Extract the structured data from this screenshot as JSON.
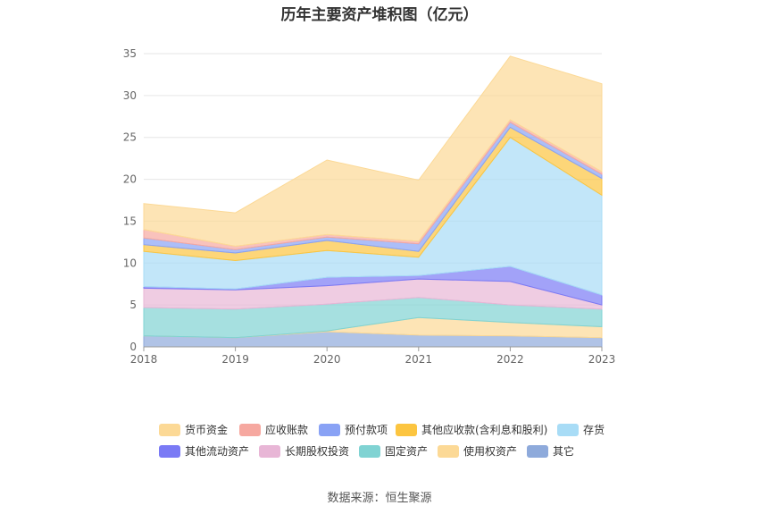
{
  "title": "历年主要资产堆积图（亿元）",
  "source": "数据来源：恒生聚源",
  "chart_data": {
    "type": "area",
    "stacked": true,
    "title": "历年主要资产堆积图（亿元）",
    "x": [
      "2018",
      "2019",
      "2020",
      "2021",
      "2022",
      "2023"
    ],
    "ylim": [
      0,
      35
    ],
    "yticks": [
      0,
      5,
      10,
      15,
      20,
      25,
      30,
      35
    ],
    "grid": true,
    "legend_position": "bottom",
    "series": [
      {
        "name": "其它",
        "color": "#8eaadb",
        "values": [
          1.3,
          1.1,
          1.8,
          1.4,
          1.3,
          1.1
        ]
      },
      {
        "name": "使用权资产",
        "color": "#fcd996",
        "values": [
          0,
          0,
          0.1,
          2.1,
          1.6,
          1.3
        ]
      },
      {
        "name": "固定资产",
        "color": "#80d3d3",
        "values": [
          3.4,
          3.4,
          3.2,
          2.4,
          2.1,
          2.1
        ]
      },
      {
        "name": "长期股权投资",
        "color": "#e8b6d6",
        "values": [
          2.3,
          2.3,
          2.2,
          2.2,
          2.8,
          0.5
        ]
      },
      {
        "name": "其他流动资产",
        "color": "#7a7af5",
        "values": [
          0.2,
          0.1,
          1.0,
          0.4,
          1.8,
          1.2
        ]
      },
      {
        "name": "存货",
        "color": "#a8dcf6",
        "values": [
          4.2,
          3.4,
          3.2,
          2.2,
          15.4,
          11.9
        ]
      },
      {
        "name": "其他应收款(含利息和股利)",
        "color": "#fcc540",
        "values": [
          0.8,
          0.9,
          1.2,
          0.7,
          1.2,
          2.0
        ]
      },
      {
        "name": "预付款项",
        "color": "#89a2f5",
        "values": [
          0.8,
          0.4,
          0.4,
          0.9,
          0.6,
          0.5
        ]
      },
      {
        "name": "应收账款",
        "color": "#f6a8a0",
        "values": [
          1.0,
          0.4,
          0.3,
          0.3,
          0.3,
          0.3
        ]
      },
      {
        "name": "货币资金",
        "color": "#fcd996",
        "values": [
          3.1,
          4.0,
          8.9,
          7.3,
          7.6,
          10.5
        ]
      }
    ],
    "legend_order": [
      "货币资金",
      "应收账款",
      "预付款项",
      "其他应收款(含利息和股利)",
      "存货",
      "其他流动资产",
      "长期股权投资",
      "固定资产",
      "使用权资产",
      "其它"
    ]
  }
}
